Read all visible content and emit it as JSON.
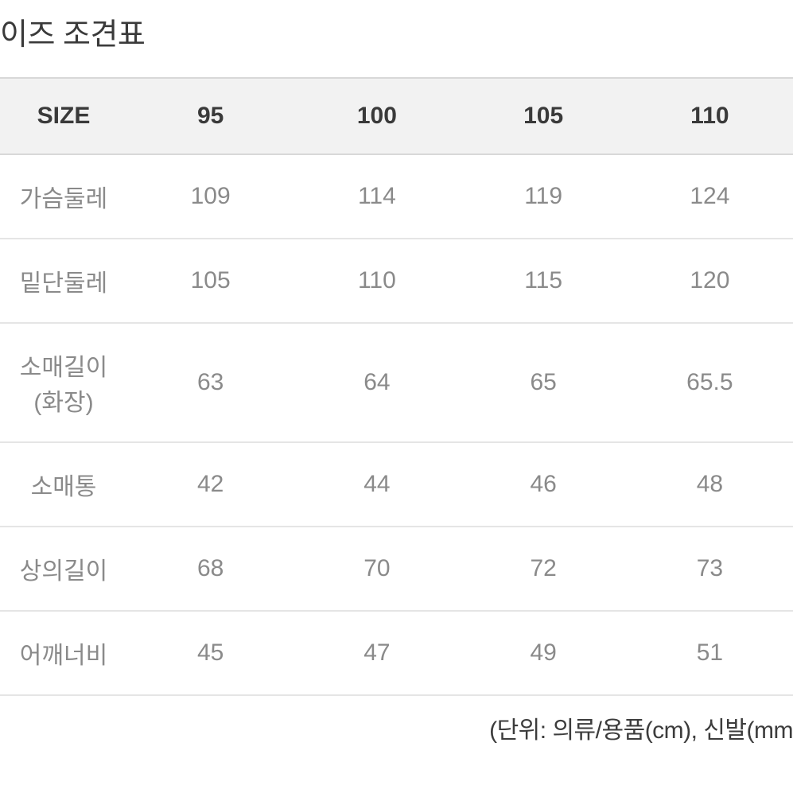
{
  "title": "이즈 조견표",
  "table": {
    "headers": [
      "SIZE",
      "95",
      "100",
      "105",
      "110"
    ],
    "rows": [
      {
        "label": "가슴둘레",
        "values": [
          "109",
          "114",
          "119",
          "124"
        ]
      },
      {
        "label": "밑단둘레",
        "values": [
          "105",
          "110",
          "115",
          "120"
        ]
      },
      {
        "label": "소매길이(화장)",
        "values": [
          "63",
          "64",
          "65",
          "65.5"
        ]
      },
      {
        "label": "소매통",
        "values": [
          "42",
          "44",
          "46",
          "48"
        ]
      },
      {
        "label": "상의길이",
        "values": [
          "68",
          "70",
          "72",
          "73"
        ]
      },
      {
        "label": "어깨너비",
        "values": [
          "45",
          "47",
          "49",
          "51"
        ]
      }
    ]
  },
  "footnote": "(단위: 의류/용품(cm), 신발(mm",
  "styling": {
    "background_color": "#ffffff",
    "header_bg_color": "#f2f2f2",
    "header_text_color": "#3a3a3a",
    "body_text_color": "#8a8a8a",
    "title_color": "#3a3a3a",
    "border_color_header": "#d8d8d8",
    "border_color_row": "#e5e5e5",
    "title_fontsize": 38,
    "cell_fontsize": 30,
    "footnote_fontsize": 30,
    "first_col_width": 160
  }
}
